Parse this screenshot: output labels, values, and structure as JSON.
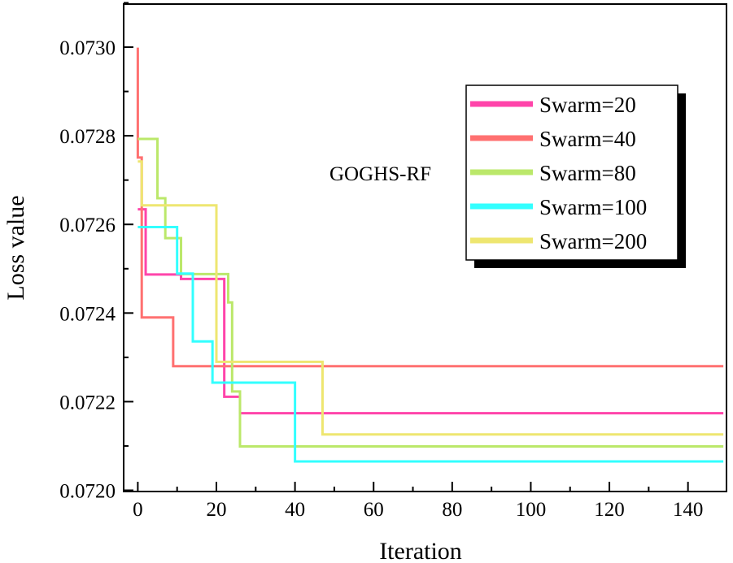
{
  "chart_data": {
    "type": "line",
    "step": true,
    "title": "",
    "xlabel": "Iteration",
    "ylabel": "Loss value",
    "xlim": [
      -3.6,
      149.8
    ],
    "ylim": [
      0.072,
      0.0731
    ],
    "xticks": [
      0,
      20,
      40,
      60,
      80,
      100,
      120,
      140
    ],
    "xtick_labels": [
      "0",
      "20",
      "40",
      "60",
      "80",
      "100",
      "120",
      "140"
    ],
    "yticks": [
      0.072,
      0.0722,
      0.0724,
      0.0726,
      0.0728,
      0.073
    ],
    "ytick_labels": [
      "0.0720",
      "0.0722",
      "0.0724",
      "0.0726",
      "0.0728",
      "0.0730"
    ],
    "grid": false,
    "legend_position": "top-right",
    "annotation": "GOGHS-RF",
    "series": [
      {
        "name": "Swarm=20",
        "color": "#ff44aa",
        "points": [
          [
            0,
            0.072634
          ],
          [
            2,
            0.072487
          ],
          [
            11,
            0.072477
          ],
          [
            22,
            0.072211
          ],
          [
            26,
            0.072174
          ],
          [
            149,
            0.072174
          ]
        ]
      },
      {
        "name": "Swarm=40",
        "color": "#ff7070",
        "points": [
          [
            0,
            0.072999
          ],
          [
            0,
            0.072751
          ],
          [
            1,
            0.07239
          ],
          [
            9,
            0.07228
          ],
          [
            149,
            0.07228
          ]
        ]
      },
      {
        "name": "Swarm=80",
        "color": "#bbe86a",
        "points": [
          [
            0,
            0.072793
          ],
          [
            5,
            0.072659
          ],
          [
            7,
            0.072569
          ],
          [
            11,
            0.072488
          ],
          [
            23,
            0.072424
          ],
          [
            24,
            0.072223
          ],
          [
            26,
            0.072099
          ],
          [
            149,
            0.072099
          ]
        ]
      },
      {
        "name": "Swarm=100",
        "color": "#33ffff",
        "points": [
          [
            0,
            0.072594
          ],
          [
            10,
            0.072489
          ],
          [
            14,
            0.072336
          ],
          [
            19,
            0.072243
          ],
          [
            40,
            0.072065
          ],
          [
            149,
            0.072065
          ]
        ]
      },
      {
        "name": "Swarm=200",
        "color": "#eee670",
        "points": [
          [
            0,
            0.072742
          ],
          [
            1,
            0.072643
          ],
          [
            20,
            0.07229
          ],
          [
            47,
            0.072126
          ],
          [
            149,
            0.072126
          ]
        ]
      }
    ]
  }
}
